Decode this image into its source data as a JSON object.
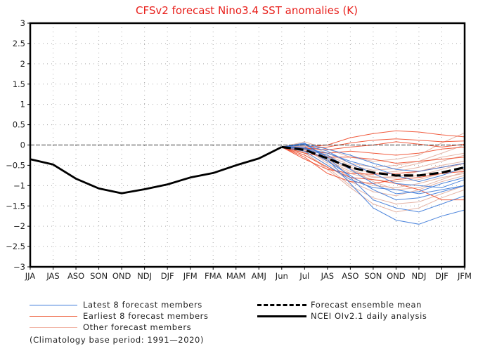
{
  "chart_data": {
    "type": "line",
    "title": "CFSv2 forecast Nino3.4 SST anomalies (K)",
    "xlabel": "",
    "ylabel": "",
    "categories": [
      "JJA",
      "JAS",
      "ASO",
      "SON",
      "OND",
      "NDJ",
      "DJF",
      "JFM",
      "FMA",
      "MAM",
      "AMJ",
      "Jun",
      "Jul",
      "JAS",
      "ASO",
      "SON",
      "OND",
      "NDJ",
      "DJF",
      "JFM"
    ],
    "ylim": [
      -3,
      3
    ],
    "yticks": [
      3,
      2.5,
      2,
      1.5,
      1,
      0.5,
      0,
      -0.5,
      -1,
      -1.5,
      -2,
      -2.5,
      -3
    ],
    "ytick_labels": [
      "3",
      "2.5",
      "2",
      "1.5",
      "1",
      "0.5",
      "0",
      "−0.5",
      "−1",
      "−1.5",
      "−2",
      "−2.5",
      "−3"
    ],
    "grid": true,
    "zero_line": true,
    "colors": {
      "title": "#e8201c",
      "latest": "#3a78d8",
      "earliest": "#f04a2a",
      "other": "#e0a898",
      "mean": "#000000",
      "observed": "#000000"
    },
    "observed": {
      "name": "NCEI OIv2.1 daily analysis",
      "x_start": 0,
      "values": [
        -0.35,
        -0.48,
        -0.83,
        -1.07,
        -1.19,
        -1.09,
        -0.97,
        -0.8,
        -0.69,
        -0.5,
        -0.33,
        -0.05
      ]
    },
    "ensemble_mean": {
      "name": "Forecast ensemble mean",
      "x_start": 11,
      "values": [
        -0.05,
        -0.12,
        -0.33,
        -0.55,
        -0.68,
        -0.75,
        -0.75,
        -0.68,
        -0.55
      ]
    },
    "members": {
      "x_start": 11,
      "latest": [
        [
          -0.05,
          0.05,
          -0.35,
          -0.95,
          -1.55,
          -1.85,
          -1.95,
          -1.75,
          -1.6
        ],
        [
          -0.05,
          0.02,
          -0.3,
          -0.8,
          -1.35,
          -1.55,
          -1.65,
          -1.45,
          -1.25
        ],
        [
          -0.05,
          -0.05,
          -0.4,
          -0.75,
          -1.1,
          -1.35,
          -1.3,
          -1.15,
          -1.0
        ],
        [
          -0.05,
          -0.1,
          -0.25,
          -0.6,
          -0.95,
          -1.2,
          -1.15,
          -0.95,
          -0.8
        ],
        [
          -0.05,
          0.0,
          -0.15,
          -0.45,
          -0.7,
          -0.95,
          -1.0,
          -1.05,
          -0.85
        ],
        [
          -0.05,
          -0.08,
          -0.2,
          -0.4,
          -0.55,
          -0.75,
          -0.9,
          -0.75,
          -0.55
        ],
        [
          -0.05,
          0.03,
          -0.1,
          -0.25,
          -0.45,
          -0.6,
          -0.65,
          -0.55,
          -0.45
        ],
        [
          -0.05,
          -0.15,
          -0.5,
          -0.85,
          -1.05,
          -1.1,
          -1.2,
          -1.1,
          -1.0
        ]
      ],
      "earliest": [
        [
          -0.05,
          -0.05,
          0.0,
          0.18,
          0.28,
          0.35,
          0.32,
          0.25,
          0.2
        ],
        [
          -0.05,
          -0.1,
          -0.05,
          0.05,
          0.12,
          0.15,
          0.12,
          0.08,
          0.1
        ],
        [
          -0.05,
          -0.08,
          -0.12,
          -0.05,
          0.0,
          0.08,
          0.02,
          -0.05,
          0.02
        ],
        [
          -0.05,
          -0.15,
          -0.2,
          -0.15,
          -0.2,
          -0.25,
          -0.2,
          -0.1,
          -0.05
        ],
        [
          -0.05,
          -0.2,
          -0.3,
          -0.3,
          -0.35,
          -0.45,
          -0.4,
          -0.35,
          -0.3
        ],
        [
          -0.05,
          -0.25,
          -0.55,
          -0.8,
          -0.85,
          -0.95,
          -1.1,
          -1.35,
          -1.35
        ],
        [
          -0.05,
          -0.3,
          -0.7,
          -0.9,
          -0.95,
          -0.85,
          -0.8,
          -0.7,
          -0.65
        ],
        [
          -0.05,
          -0.35,
          -0.6,
          -0.7,
          -0.72,
          -0.7,
          -0.65,
          -0.55,
          -0.45
        ]
      ],
      "other": [
        [
          -0.05,
          0.08,
          -0.1,
          -0.3,
          -0.4,
          -0.35,
          -0.25,
          0.05,
          0.3
        ],
        [
          -0.05,
          0.02,
          -0.2,
          -0.45,
          -0.55,
          -0.5,
          -0.4,
          -0.2,
          0.0
        ],
        [
          -0.05,
          -0.05,
          -0.3,
          -0.55,
          -0.7,
          -0.65,
          -0.55,
          -0.4,
          -0.25
        ],
        [
          -0.05,
          -0.1,
          -0.35,
          -0.6,
          -0.78,
          -0.82,
          -0.75,
          -0.6,
          -0.45
        ],
        [
          -0.05,
          -0.12,
          -0.4,
          -0.7,
          -0.85,
          -0.9,
          -0.85,
          -0.7,
          -0.6
        ],
        [
          -0.05,
          -0.08,
          -0.45,
          -0.8,
          -1.0,
          -1.05,
          -0.95,
          -0.8,
          -0.7
        ],
        [
          -0.05,
          -0.15,
          -0.5,
          -0.9,
          -1.15,
          -1.25,
          -1.1,
          -0.9,
          -0.75
        ],
        [
          -0.05,
          -0.2,
          -0.55,
          -1.0,
          -1.3,
          -1.45,
          -1.4,
          -1.2,
          -1.0
        ],
        [
          -0.05,
          -0.18,
          -0.6,
          -1.05,
          -1.45,
          -1.65,
          -1.55,
          -1.3,
          -1.1
        ],
        [
          -0.05,
          -0.05,
          -0.25,
          -0.5,
          -0.62,
          -0.58,
          -0.45,
          -0.3,
          -0.2
        ],
        [
          -0.05,
          -0.1,
          -0.38,
          -0.65,
          -0.8,
          -0.78,
          -0.65,
          -0.5,
          -0.4
        ],
        [
          -0.05,
          -0.02,
          -0.28,
          -0.58,
          -0.9,
          -1.1,
          -1.05,
          -0.85,
          -0.65
        ]
      ]
    },
    "legend": {
      "placement": "bottom",
      "entries": [
        {
          "label": "Latest 8 forecast members",
          "style": "latest"
        },
        {
          "label": "Earliest 8 forecast members",
          "style": "earliest"
        },
        {
          "label": "Other forecast members",
          "style": "other"
        },
        {
          "label": "Forecast ensemble mean",
          "style": "mean"
        },
        {
          "label": "NCEI OIv2.1 daily analysis",
          "style": "observed"
        }
      ]
    },
    "annotation": "(Climatology base period: 1991—2020)"
  }
}
